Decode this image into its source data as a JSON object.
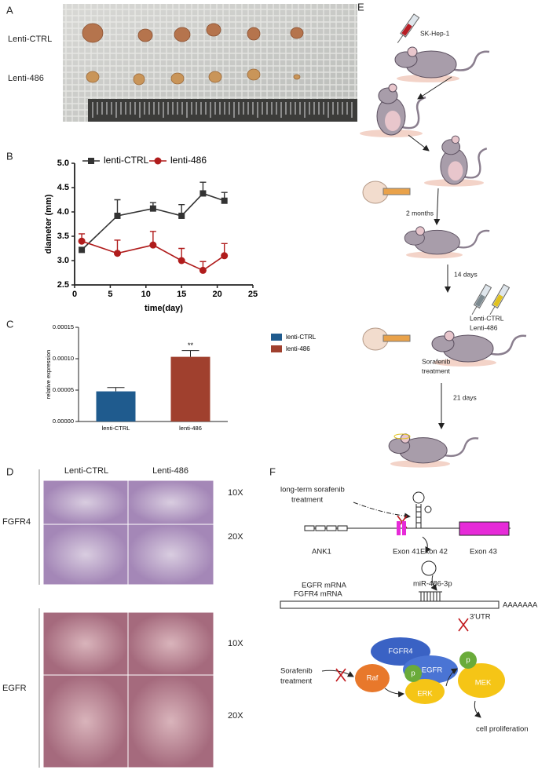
{
  "panel_letters": [
    "A",
    "B",
    "C",
    "D",
    "E",
    "F"
  ],
  "panel_a": {
    "rows": [
      "Lenti-CTRL",
      "Lenti-486"
    ]
  },
  "chart_data": [
    {
      "type": "line",
      "xlabel": "time(day)",
      "ylabel": "diameter (mm)",
      "x": [
        1,
        6,
        11,
        15,
        18,
        21
      ],
      "series": [
        {
          "name": "lenti-CTRL",
          "color": "#333333",
          "marker": "square",
          "values": [
            3.22,
            3.92,
            4.07,
            3.92,
            4.38,
            4.23
          ],
          "errors": [
            0.05,
            0.33,
            0.12,
            0.23,
            0.23,
            0.17
          ]
        },
        {
          "name": "lenti-486",
          "color": "#b01c1c",
          "marker": "circle",
          "values": [
            3.4,
            3.15,
            3.32,
            3.0,
            2.8,
            3.1
          ],
          "errors": [
            0.15,
            0.27,
            0.28,
            0.25,
            0.18,
            0.25
          ]
        }
      ],
      "xlim": [
        0,
        25
      ],
      "xticks": [
        0,
        5,
        10,
        15,
        20,
        25
      ],
      "ylim": [
        2.5,
        5
      ],
      "yticks": [
        2.5,
        {
          "value": 3,
          "label": "3.0"
        },
        3.5,
        {
          "value": 4,
          "label": "4.0"
        },
        4.5,
        {
          "value": 5,
          "label": "5.0"
        }
      ],
      "legend": "top"
    },
    {
      "type": "bar",
      "ylabel": "relative expression",
      "categories": [
        "lenti-CTRL",
        "lenti-486"
      ],
      "values": [
        4.8e-05,
        0.000103
      ],
      "errors": [
        6e-06,
        1e-05
      ],
      "colors": [
        "#1f5b8e",
        "#a0402e"
      ],
      "significance": [
        null,
        "**"
      ],
      "ylim": [
        0,
        0.00015
      ],
      "yticks": [
        {
          "value": 0,
          "label": "0.00000"
        },
        {
          "value": 5e-05,
          "label": "0.00005"
        },
        {
          "value": 0.0001,
          "label": "0.00010"
        },
        {
          "value": 0.00015,
          "label": "0.00015"
        }
      ],
      "legend": "top-right"
    }
  ],
  "panel_d": {
    "columns": [
      "Lenti-CTRL",
      "Lenti-486"
    ],
    "rows": [
      {
        "label": "FGFR4",
        "magnifications": [
          "10X",
          "20X"
        ]
      },
      {
        "label": "EGFR",
        "magnifications": [
          "10X",
          "20X"
        ]
      }
    ]
  },
  "panel_e": {
    "cell_line": "SK-Hep-1",
    "steps": [
      "2 months",
      "14 days",
      "21 days"
    ],
    "treatments": [
      "Lenti-CTRL",
      "Lenti-486"
    ],
    "drug": [
      "Sorafenib",
      "treatment"
    ]
  },
  "panel_f": {
    "trigger": [
      "long-term sorafenib",
      "treatment"
    ],
    "gene": "ANK1",
    "exons": [
      "Exon 41",
      "Exon 42",
      "Exon 43"
    ],
    "mrnas": [
      "EGFR mRNA",
      "FGFR4 mRNA"
    ],
    "mirna": "miR-486-3p",
    "polya": "AAAAAAA",
    "utr": "3'UTR",
    "proteins": [
      "FGFR4",
      "EGFR",
      "Raf",
      "ERK",
      "MEK"
    ],
    "phospho": [
      "p",
      "p"
    ],
    "drug": [
      "Sorafenib",
      "treatment"
    ],
    "outcome": "cell proliferation"
  }
}
